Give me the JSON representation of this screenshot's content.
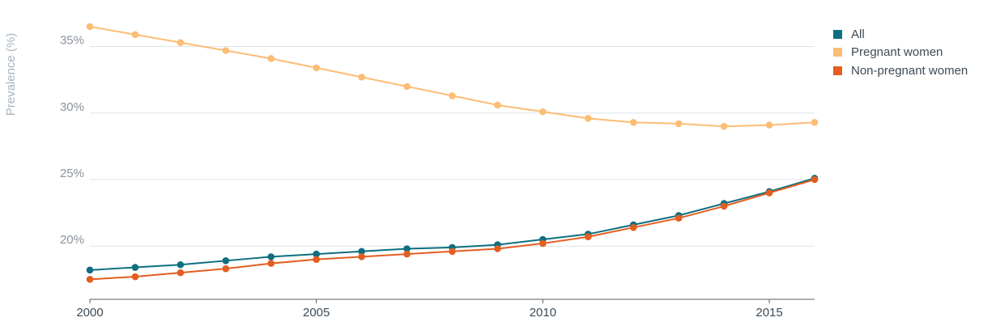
{
  "chart_data": {
    "type": "line",
    "title": "",
    "xlabel": "",
    "ylabel": "Prevalence (%)",
    "x": [
      2000,
      2001,
      2002,
      2003,
      2004,
      2005,
      2006,
      2007,
      2008,
      2009,
      2010,
      2011,
      2012,
      2013,
      2014,
      2015,
      2016
    ],
    "xlim": [
      2000,
      2016
    ],
    "ylim": [
      16,
      38.5
    ],
    "x_ticks": [
      {
        "value": 2000,
        "label": "2000"
      },
      {
        "value": 2005,
        "label": "2005"
      },
      {
        "value": 2010,
        "label": "2010"
      },
      {
        "value": 2015,
        "label": "2015"
      }
    ],
    "y_ticks": [
      {
        "value": 20,
        "label": "20%"
      },
      {
        "value": 25,
        "label": "25%"
      },
      {
        "value": 30,
        "label": "30%"
      },
      {
        "value": 35,
        "label": "35%"
      }
    ],
    "grid": true,
    "legend_position": "top-right",
    "series": [
      {
        "name": "All",
        "color": "#0e6f80",
        "values": [
          18.2,
          18.4,
          18.6,
          18.9,
          19.2,
          19.4,
          19.6,
          19.8,
          19.9,
          20.1,
          20.5,
          20.9,
          21.6,
          22.3,
          23.2,
          24.1,
          25.1
        ]
      },
      {
        "name": "Pregnant women",
        "color": "#fcbd75",
        "values": [
          36.5,
          35.9,
          35.3,
          34.7,
          34.1,
          33.4,
          32.7,
          32.0,
          31.3,
          30.6,
          30.1,
          29.6,
          29.3,
          29.2,
          29.0,
          29.1,
          29.3
        ]
      },
      {
        "name": "Non-pregnant women",
        "color": "#e45e21",
        "values": [
          17.5,
          17.7,
          18.0,
          18.3,
          18.7,
          19.0,
          19.2,
          19.4,
          19.6,
          19.8,
          20.2,
          20.7,
          21.4,
          22.1,
          23.0,
          24.0,
          25.0
        ]
      }
    ]
  }
}
